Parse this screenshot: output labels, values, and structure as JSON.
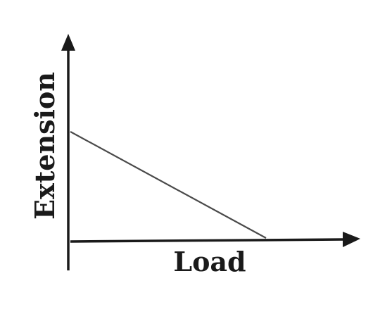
{
  "chart_data": {
    "type": "line",
    "title": "",
    "xlabel": "Load",
    "ylabel": "Extension",
    "grid": false,
    "legend": "none",
    "axis_ticks": "none",
    "series": [
      {
        "x": [
          0,
          1
        ],
        "y": [
          1,
          0
        ]
      }
    ],
    "colors": {
      "axis": "#1a1a1a",
      "line": "#4a4a4a",
      "background": "#ffffff"
    }
  }
}
